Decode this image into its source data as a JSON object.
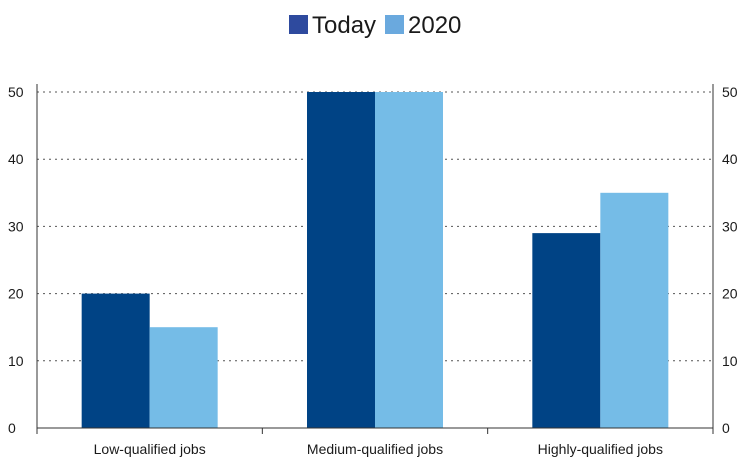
{
  "chart_data": {
    "type": "bar",
    "categories": [
      "Low-qualified jobs",
      "Medium-qualified jobs",
      "Highly-qualified jobs"
    ],
    "series": [
      {
        "name": "Today",
        "values": [
          20,
          50,
          29
        ],
        "color": "#004385"
      },
      {
        "name": "2020",
        "values": [
          15,
          50,
          35
        ],
        "color": "#75bce7"
      }
    ],
    "ylim": [
      0,
      50
    ],
    "yticks": [
      0,
      10,
      20,
      30,
      40,
      50
    ],
    "grid": true,
    "legend": "top-center",
    "y_axis": "both-sides"
  }
}
